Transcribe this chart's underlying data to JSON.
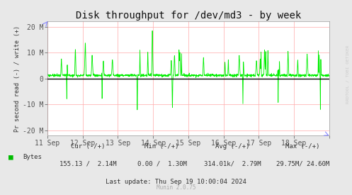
{
  "title": "Disk throughput for /dev/md3 - by week",
  "ylabel": "Pr second read (-) / write (+)",
  "background_color": "#e8e8e8",
  "plot_bg_color": "#ffffff",
  "grid_color_h": "#ffaaaa",
  "grid_color_v": "#ddaaaa",
  "line_color": "#00ee00",
  "zero_line_color": "#000000",
  "ylim": [
    -22000000,
    22000000
  ],
  "y_ticks": [
    -20000000,
    -10000000,
    0,
    10000000,
    20000000
  ],
  "y_tick_labels": [
    "-20 M",
    "-10 M",
    "0",
    "10 M",
    "20 M"
  ],
  "x_tick_labels": [
    "11 Sep",
    "12 Sep",
    "13 Sep",
    "14 Sep",
    "15 Sep",
    "16 Sep",
    "17 Sep",
    "18 Sep"
  ],
  "legend_label": "Bytes",
  "legend_color": "#00bb00",
  "stats_cur": "155.13 /  2.14M",
  "stats_min": "0.00 /  1.30M",
  "stats_avg": "314.01k/  2.79M",
  "stats_max": "29.75M/ 24.60M",
  "last_update": "Last update: Thu Sep 19 10:00:04 2024",
  "munin_version": "Munin 2.0.75",
  "rrdtool_label": "RRDTOOL / TOBI OETIKER",
  "num_points": 1680
}
